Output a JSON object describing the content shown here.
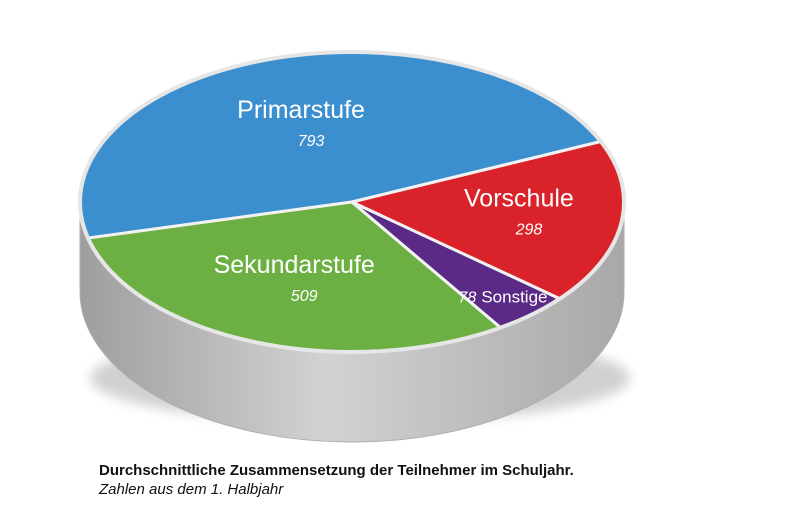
{
  "chart_data": {
    "type": "pie",
    "style": "3d",
    "title": "Durchschnittliche Zusammensetzung der Teilnehmer im Schuljahr.",
    "subtitle": "Zahlen aus dem 1. Halbjahr",
    "slices": [
      {
        "name": "Primarstufe",
        "value": 793,
        "color": "#3b8fcf"
      },
      {
        "name": "Sekundarstufe",
        "value": 509,
        "color": "#6cb043"
      },
      {
        "name": "Sonstige",
        "value": 78,
        "color": "#5a2a86"
      },
      {
        "name": "Vorschule",
        "value": 298,
        "color": "#d92229"
      }
    ],
    "side_color": "#c4c4c4"
  }
}
